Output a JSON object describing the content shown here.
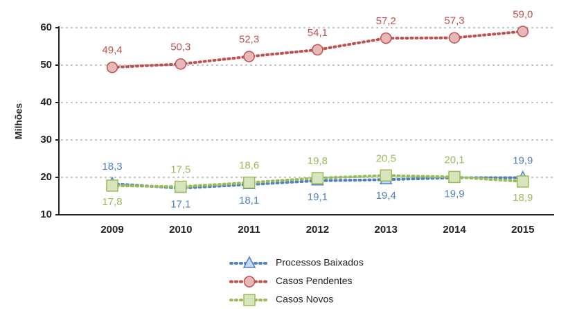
{
  "chart_data": {
    "type": "line",
    "y_label": "Milhões",
    "categories": [
      "2009",
      "2010",
      "2011",
      "2012",
      "2013",
      "2014",
      "2015"
    ],
    "series": [
      {
        "name": "Processos Baixados",
        "color": "#4f81bd",
        "marker": "triangle",
        "values": [
          18.3,
          17.1,
          18.1,
          19.1,
          19.4,
          19.9,
          19.9
        ],
        "value_labels": [
          "18,3",
          "17,1",
          "18,1",
          "19,1",
          "19,4",
          "19,9",
          "19,9"
        ]
      },
      {
        "name": "Casos Pendentes",
        "color": "#c0504d",
        "marker": "circle",
        "values": [
          49.4,
          50.3,
          52.3,
          54.1,
          57.2,
          57.3,
          59.0
        ],
        "value_labels": [
          "49,4",
          "50,3",
          "52,3",
          "54,1",
          "57,2",
          "57,3",
          "59,0"
        ]
      },
      {
        "name": "Casos Novos",
        "color": "#9bbb59",
        "marker": "square",
        "values": [
          17.8,
          17.5,
          18.6,
          19.8,
          20.5,
          20.1,
          18.9
        ],
        "value_labels": [
          "17,8",
          "17,5",
          "18,6",
          "19,8",
          "20,5",
          "20,1",
          "18,9"
        ]
      }
    ],
    "ylim": [
      10,
      60
    ],
    "yticks": [
      10,
      20,
      30,
      40,
      50,
      60
    ],
    "grid": true,
    "legend": "bottom"
  }
}
